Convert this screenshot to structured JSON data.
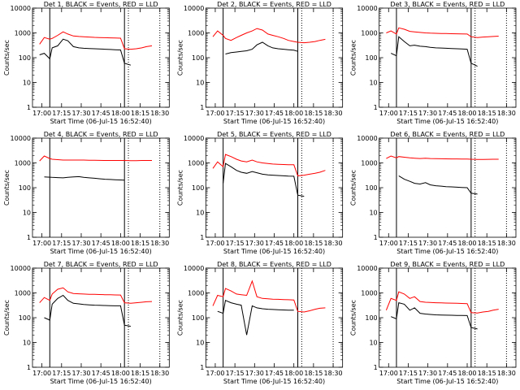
{
  "figure": {
    "xlabel": "Start Time (06-Jul-15 16:52:40)",
    "ylabel": "Counts/sec",
    "x_tick_labels": [
      "17:00",
      "17:15",
      "17:30",
      "17:45",
      "18:00",
      "18:15",
      "18:30"
    ],
    "y_tick_labels": [
      "1",
      "10",
      "100",
      "1000",
      "10000"
    ],
    "colors": {
      "events": "#000000",
      "lld": "#ff0000"
    }
  },
  "chart_data": [
    {
      "type": "line",
      "title": "Det 1, BLACK = Events, RED = LLD",
      "ylabel": "Counts/sec",
      "xlabel": "Start Time (06-Jul-15 16:52:40)",
      "log_y": true,
      "ylim": [
        1,
        10000
      ],
      "x_range_minutes_after_17_00": [
        -7,
        37
      ],
      "vertical_lines_solid": [
        17.1,
        18.05
      ],
      "vertical_lines_dotted": [
        18.1,
        18.5
      ],
      "x": [
        16.97,
        17.03,
        17.1,
        17.13,
        17.2,
        17.27,
        17.33,
        17.4,
        17.47,
        17.53,
        17.6,
        17.67,
        17.73,
        17.8,
        17.87,
        17.93,
        18.0,
        18.05,
        18.13,
        18.2,
        18.27,
        18.33,
        18.4,
        18.47,
        18.53
      ],
      "series": [
        {
          "name": "Events",
          "values": [
            130,
            150,
            90,
            250,
            300,
            560,
            480,
            280,
            250,
            240,
            235,
            230,
            225,
            220,
            215,
            210,
            205,
            60,
            50,
            null,
            null,
            null,
            null,
            null,
            null
          ]
        },
        {
          "name": "LLD",
          "values": [
            350,
            650,
            560,
            600,
            800,
            1100,
            900,
            750,
            720,
            700,
            680,
            660,
            650,
            640,
            630,
            620,
            610,
            230,
            220,
            230,
            250,
            280,
            300,
            null,
            null
          ]
        }
      ]
    },
    {
      "type": "line",
      "title": "Det 2, BLACK = Events, RED = LLD",
      "ylabel": "Counts/sec",
      "xlabel": "Start Time (06-Jul-15 16:52:40)",
      "log_y": true,
      "ylim": [
        1,
        10000
      ],
      "x_range_minutes_after_17_00": [
        -7,
        37
      ],
      "vertical_lines_solid": [
        17.1,
        18.05
      ],
      "vertical_lines_dotted": [
        18.1,
        18.5
      ],
      "x": [
        16.97,
        17.03,
        17.1,
        17.13,
        17.2,
        17.27,
        17.33,
        17.4,
        17.47,
        17.53,
        17.6,
        17.67,
        17.73,
        17.8,
        17.87,
        17.93,
        18.0,
        18.05,
        18.13,
        18.2,
        18.27,
        18.33,
        18.4,
        18.47,
        18.53
      ],
      "series": [
        {
          "name": "Events",
          "values": [
            null,
            null,
            null,
            140,
            160,
            170,
            180,
            190,
            220,
            330,
            420,
            300,
            250,
            230,
            220,
            210,
            200,
            180,
            null,
            null,
            null,
            null,
            null,
            null,
            null
          ]
        },
        {
          "name": "LLD",
          "values": [
            700,
            1200,
            800,
            600,
            500,
            650,
            800,
            1000,
            1200,
            1500,
            1300,
            900,
            800,
            700,
            600,
            500,
            450,
            420,
            400,
            420,
            450,
            500,
            550,
            null,
            null
          ]
        }
      ]
    },
    {
      "type": "line",
      "title": "Det 3, BLACK = Events, RED = LLD",
      "ylabel": "Counts/sec",
      "xlabel": "Start Time (06-Jul-15 16:52:40)",
      "log_y": true,
      "ylim": [
        1,
        10000
      ],
      "x_range_minutes_after_17_00": [
        -7,
        37
      ],
      "vertical_lines_solid": [
        17.1,
        18.05
      ],
      "vertical_lines_dotted": [
        18.1,
        18.5
      ],
      "x": [
        16.97,
        17.03,
        17.1,
        17.13,
        17.2,
        17.27,
        17.33,
        17.4,
        17.47,
        17.53,
        17.6,
        17.67,
        17.73,
        17.8,
        17.87,
        17.93,
        18.0,
        18.05,
        18.13,
        18.2,
        18.27,
        18.33,
        18.4,
        18.47,
        18.53
      ],
      "series": [
        {
          "name": "Events",
          "values": [
            null,
            150,
            120,
            700,
            450,
            300,
            320,
            290,
            280,
            260,
            250,
            245,
            240,
            235,
            230,
            225,
            220,
            60,
            45,
            null,
            null,
            null,
            null,
            null,
            null
          ]
        },
        {
          "name": "LLD",
          "values": [
            1000,
            1200,
            900,
            1600,
            1400,
            1150,
            1100,
            1050,
            1000,
            980,
            960,
            950,
            940,
            930,
            920,
            910,
            900,
            700,
            650,
            680,
            700,
            720,
            740,
            null,
            null
          ]
        }
      ]
    },
    {
      "type": "line",
      "title": "Det 4, BLACK = Events, RED = LLD",
      "ylabel": "Counts/sec",
      "xlabel": "Start Time (06-Jul-15 16:52:40)",
      "log_y": true,
      "ylim": [
        1,
        10000
      ],
      "x_range_minutes_after_17_00": [
        -7,
        37
      ],
      "vertical_lines_solid": [
        17.1,
        18.05
      ],
      "vertical_lines_dotted": [
        18.1,
        18.5
      ],
      "x": [
        16.97,
        17.03,
        17.1,
        17.13,
        17.2,
        17.27,
        17.33,
        17.4,
        17.47,
        17.53,
        17.6,
        17.67,
        17.73,
        17.8,
        17.87,
        17.93,
        18.0,
        18.05,
        18.13,
        18.2,
        18.27,
        18.33,
        18.4,
        18.47,
        18.53
      ],
      "series": [
        {
          "name": "Events",
          "values": [
            null,
            270,
            265,
            260,
            255,
            250,
            260,
            270,
            280,
            260,
            250,
            240,
            230,
            220,
            215,
            210,
            205,
            200,
            null,
            null,
            null,
            null,
            null,
            null,
            null
          ]
        },
        {
          "name": "LLD",
          "values": [
            1200,
            1900,
            1500,
            1400,
            1350,
            1300,
            1300,
            1300,
            1300,
            1300,
            1280,
            1270,
            1260,
            1250,
            1250,
            1250,
            1250,
            1250,
            1240,
            1240,
            1250,
            1250,
            1250,
            null,
            null
          ]
        }
      ]
    },
    {
      "type": "line",
      "title": "Det 5, BLACK = Events, RED = LLD",
      "ylabel": "Counts/sec",
      "xlabel": "Start Time (06-Jul-15 16:52:40)",
      "log_y": true,
      "ylim": [
        1,
        10000
      ],
      "x_range_minutes_after_17_00": [
        -7,
        37
      ],
      "vertical_lines_solid": [
        17.1,
        18.05
      ],
      "vertical_lines_dotted": [
        18.1,
        18.5
      ],
      "x": [
        16.97,
        17.03,
        17.1,
        17.13,
        17.2,
        17.27,
        17.33,
        17.4,
        17.47,
        17.53,
        17.6,
        17.67,
        17.73,
        17.8,
        17.87,
        17.93,
        18.0,
        18.05,
        18.13,
        18.2,
        18.27,
        18.33,
        18.4,
        18.47,
        18.53
      ],
      "series": [
        {
          "name": "Events",
          "values": [
            null,
            null,
            150,
            950,
            700,
            500,
            420,
            380,
            450,
            400,
            350,
            330,
            320,
            310,
            300,
            295,
            290,
            50,
            45,
            null,
            null,
            null,
            null,
            null,
            null
          ]
        },
        {
          "name": "LLD",
          "values": [
            600,
            1100,
            700,
            2200,
            1800,
            1400,
            1200,
            1100,
            1300,
            1100,
            1000,
            950,
            900,
            880,
            860,
            850,
            840,
            300,
            320,
            350,
            380,
            420,
            500,
            null,
            null
          ]
        }
      ]
    },
    {
      "type": "line",
      "title": "Det 6, BLACK = Events, RED = LLD",
      "ylabel": "Counts/sec",
      "xlabel": "Start Time (06-Jul-15 16:52:40)",
      "log_y": true,
      "ylim": [
        1,
        10000
      ],
      "x_range_minutes_after_17_00": [
        -7,
        37
      ],
      "vertical_lines_solid": [
        17.1,
        18.05
      ],
      "vertical_lines_dotted": [
        18.1,
        18.5
      ],
      "x": [
        16.97,
        17.03,
        17.1,
        17.13,
        17.2,
        17.27,
        17.33,
        17.4,
        17.47,
        17.53,
        17.6,
        17.67,
        17.73,
        17.8,
        17.87,
        17.93,
        18.0,
        18.05,
        18.13,
        18.2,
        18.27,
        18.33,
        18.4,
        18.47,
        18.53
      ],
      "series": [
        {
          "name": "Events",
          "values": [
            null,
            null,
            null,
            300,
            220,
            180,
            150,
            140,
            160,
            130,
            120,
            115,
            110,
            108,
            105,
            102,
            100,
            60,
            55,
            null,
            null,
            null,
            null,
            null,
            null
          ]
        },
        {
          "name": "LLD",
          "values": [
            1500,
            1900,
            1600,
            1800,
            1700,
            1600,
            1550,
            1500,
            1550,
            1500,
            1480,
            1470,
            1460,
            1450,
            1450,
            1440,
            1440,
            1400,
            1380,
            1380,
            1390,
            1400,
            1400,
            null,
            null
          ]
        }
      ]
    },
    {
      "type": "line",
      "title": "Det 7, BLACK = Events, RED = LLD",
      "ylabel": "Counts/sec",
      "xlabel": "Start Time (06-Jul-15 16:52:40)",
      "log_y": true,
      "ylim": [
        1,
        10000
      ],
      "x_range_minutes_after_17_00": [
        -7,
        37
      ],
      "vertical_lines_solid": [
        17.1,
        18.05
      ],
      "vertical_lines_dotted": [
        18.1,
        18.5
      ],
      "x": [
        16.97,
        17.03,
        17.1,
        17.13,
        17.2,
        17.27,
        17.33,
        17.4,
        17.47,
        17.53,
        17.6,
        17.67,
        17.73,
        17.8,
        17.87,
        17.93,
        18.0,
        18.05,
        18.13,
        18.2,
        18.27,
        18.33,
        18.4,
        18.47,
        18.53
      ],
      "series": [
        {
          "name": "Events",
          "values": [
            null,
            100,
            80,
            350,
            600,
            800,
            500,
            380,
            360,
            340,
            330,
            320,
            315,
            310,
            305,
            300,
            300,
            50,
            45,
            null,
            null,
            null,
            null,
            null,
            null
          ]
        },
        {
          "name": "LLD",
          "values": [
            400,
            650,
            500,
            900,
            1400,
            1600,
            1100,
            950,
            920,
            900,
            880,
            870,
            860,
            850,
            840,
            830,
            820,
            400,
            380,
            400,
            420,
            440,
            450,
            null,
            null
          ]
        }
      ]
    },
    {
      "type": "line",
      "title": "Det 8, BLACK = Events, RED = LLD",
      "ylabel": "Counts/sec",
      "xlabel": "Start Time (06-Jul-15 16:52:40)",
      "log_y": true,
      "ylim": [
        1,
        10000
      ],
      "x_range_minutes_after_17_00": [
        -7,
        37
      ],
      "vertical_lines_solid": [
        17.1,
        18.05
      ],
      "vertical_lines_dotted": [
        18.1,
        18.5
      ],
      "x": [
        16.97,
        17.03,
        17.1,
        17.13,
        17.2,
        17.27,
        17.33,
        17.4,
        17.47,
        17.53,
        17.6,
        17.67,
        17.73,
        17.8,
        17.87,
        17.93,
        18.0,
        18.05,
        18.13,
        18.2,
        18.27,
        18.33,
        18.4,
        18.47,
        18.53
      ],
      "series": [
        {
          "name": "Events",
          "values": [
            null,
            180,
            150,
            500,
            400,
            350,
            320,
            20,
            300,
            250,
            230,
            220,
            215,
            210,
            205,
            200,
            200,
            null,
            null,
            null,
            null,
            null,
            null,
            null,
            null
          ]
        },
        {
          "name": "LLD",
          "values": [
            300,
            800,
            700,
            1500,
            1200,
            900,
            850,
            800,
            3000,
            700,
            600,
            580,
            560,
            550,
            540,
            530,
            520,
            180,
            170,
            190,
            220,
            240,
            250,
            null,
            null
          ]
        }
      ]
    },
    {
      "type": "line",
      "title": "Det 9, BLACK = Events, RED = LLD",
      "ylabel": "Counts/sec",
      "xlabel": "Start Time (06-Jul-15 16:52:40)",
      "log_y": true,
      "ylim": [
        1,
        10000
      ],
      "x_range_minutes_after_17_00": [
        -7,
        37
      ],
      "vertical_lines_solid": [
        17.1,
        18.05
      ],
      "vertical_lines_dotted": [
        18.1,
        18.5
      ],
      "x": [
        16.97,
        17.03,
        17.1,
        17.13,
        17.2,
        17.27,
        17.33,
        17.4,
        17.47,
        17.53,
        17.6,
        17.67,
        17.73,
        17.8,
        17.87,
        17.93,
        18.0,
        18.05,
        18.13,
        18.2,
        18.27,
        18.33,
        18.4,
        18.47,
        18.53
      ],
      "series": [
        {
          "name": "Events",
          "values": [
            null,
            110,
            90,
            400,
            350,
            200,
            250,
            150,
            140,
            135,
            130,
            128,
            126,
            125,
            124,
            123,
            122,
            40,
            35,
            null,
            null,
            null,
            null,
            null,
            null
          ]
        },
        {
          "name": "LLD",
          "values": [
            200,
            600,
            500,
            1100,
            900,
            600,
            700,
            450,
            420,
            410,
            400,
            395,
            390,
            385,
            380,
            375,
            370,
            160,
            155,
            170,
            180,
            200,
            220,
            null,
            null
          ]
        }
      ]
    }
  ]
}
